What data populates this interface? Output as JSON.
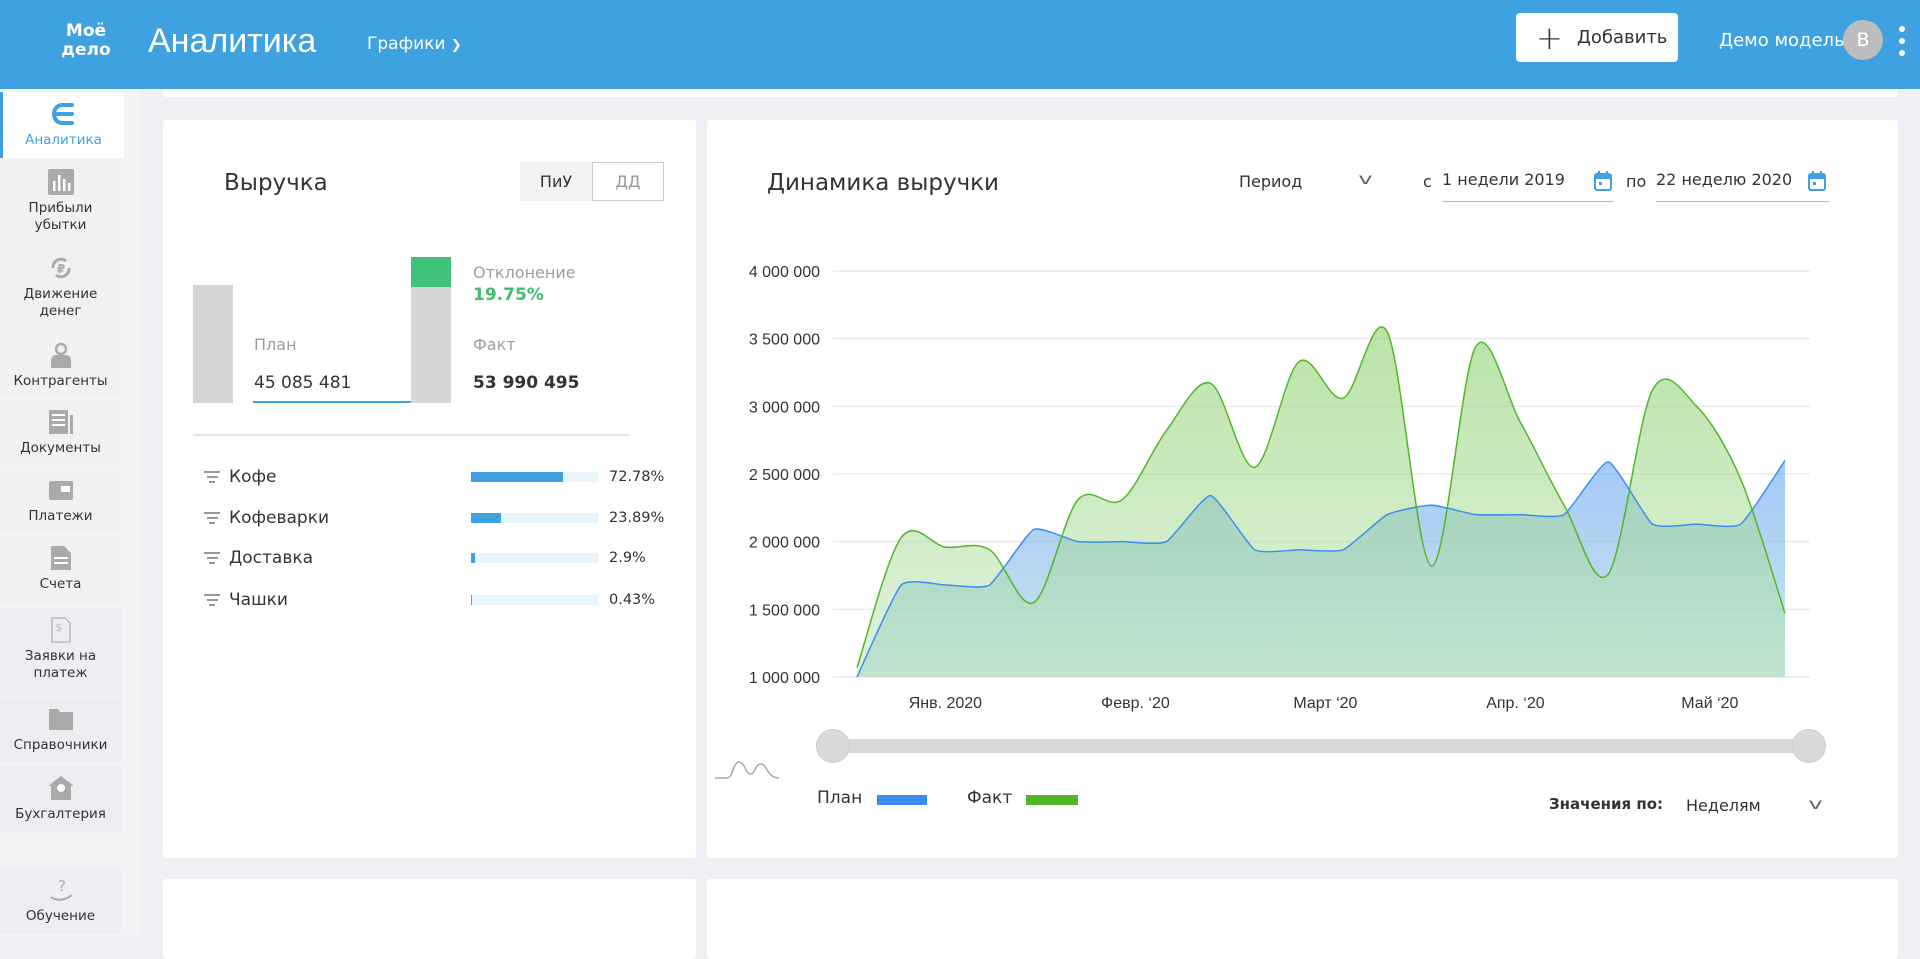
{
  "header": {
    "logo": "Моё дело",
    "title": "Аналитика",
    "nav": "Графики",
    "add_label": "Добавить",
    "user": "Демо модель",
    "avatar_letter": "В",
    "accent": "#3da2df"
  },
  "sidebar": {
    "items": [
      {
        "label": "Аналитика",
        "icon": "analytics-icon",
        "active": true
      },
      {
        "label": "Прибыли убытки",
        "icon": "bar-chart-icon"
      },
      {
        "label": "Движение денег",
        "icon": "ruble-cycle-icon"
      },
      {
        "label": "Контрагенты",
        "icon": "person-icon"
      },
      {
        "label": "Документы",
        "icon": "document-icon"
      },
      {
        "label": "Платежи",
        "icon": "wallet-icon"
      },
      {
        "label": "Счета",
        "icon": "invoice-icon"
      },
      {
        "label": "Заявки на платеж",
        "icon": "payment-request-icon"
      },
      {
        "label": "Справочники",
        "icon": "folder-icon"
      },
      {
        "label": "Бухгалтерия",
        "icon": "house-icon"
      },
      {
        "label": "Обучение",
        "icon": "help-hand-icon"
      }
    ]
  },
  "revenue": {
    "title": "Выручка",
    "toggle": [
      "ПиУ",
      "ДД"
    ],
    "toggle_selected": "ПиУ",
    "plan_label": "План",
    "plan_value": "45 085 481",
    "fact_label": "Факт",
    "fact_value": "53 990 495",
    "deviation_label": "Отклонение",
    "deviation_value": "19.75%",
    "deviation_color": "#3dbd6f",
    "items": [
      {
        "label": "Кофе",
        "percent": "72.78%",
        "share": 72.78
      },
      {
        "label": "Кофеварки",
        "percent": "23.89%",
        "share": 23.89
      },
      {
        "label": "Доставка",
        "percent": "2.9%",
        "share": 2.9
      },
      {
        "label": "Чашки",
        "percent": "0.43%",
        "share": 0.43
      }
    ]
  },
  "dynamics": {
    "title": "Динамика выручки",
    "period_label": "Период",
    "from_prefix": "с",
    "from_value": "1 недели 2019",
    "to_prefix": "по",
    "to_value": "22 неделю 2020",
    "values_by_label": "Значения по:",
    "values_by_value": "Неделям"
  },
  "chart_data": {
    "type": "area",
    "ylim": [
      1000000,
      4000000
    ],
    "y_ticks": [
      {
        "v": 1000000,
        "label": "1 000 000"
      },
      {
        "v": 1500000,
        "label": "1 500 000"
      },
      {
        "v": 2000000,
        "label": "2 000 000"
      },
      {
        "v": 2500000,
        "label": "2 500 000"
      },
      {
        "v": 3000000,
        "label": "3 000 000"
      },
      {
        "v": 3500000,
        "label": "3 500 000"
      },
      {
        "v": 4000000,
        "label": "4 000 000"
      }
    ],
    "x": [
      1,
      2,
      3,
      4,
      5,
      6,
      7,
      8,
      9,
      10,
      11,
      12,
      13,
      14,
      15,
      16,
      17,
      18,
      19,
      20,
      21,
      22
    ],
    "x_ticks": [
      {
        "v": 3,
        "label": "Янв. 2020"
      },
      {
        "v": 7.3,
        "label": "Февр. ‘20"
      },
      {
        "v": 11.6,
        "label": "Март ‘20"
      },
      {
        "v": 15.9,
        "label": "Апр. ‘20"
      },
      {
        "v": 20.3,
        "label": "Май ‘20"
      }
    ],
    "grid": true,
    "legend": "bottom-left",
    "series": [
      {
        "name": "План",
        "color": "#3b8ef0",
        "values": [
          1000000,
          1680000,
          1680000,
          1680000,
          2090000,
          2000000,
          2000000,
          2000000,
          2340000,
          1940000,
          1940000,
          1940000,
          2200000,
          2270000,
          2200000,
          2200000,
          2200000,
          2590000,
          2130000,
          2130000,
          2130000,
          2600000
        ]
      },
      {
        "name": "Факт",
        "color": "#52b62a",
        "values": [
          1070000,
          2030000,
          1960000,
          1940000,
          1550000,
          2310000,
          2310000,
          2820000,
          3170000,
          2550000,
          3330000,
          3060000,
          3550000,
          1820000,
          3440000,
          2890000,
          2270000,
          1760000,
          3120000,
          3000000,
          2460000,
          1470000
        ]
      }
    ]
  }
}
